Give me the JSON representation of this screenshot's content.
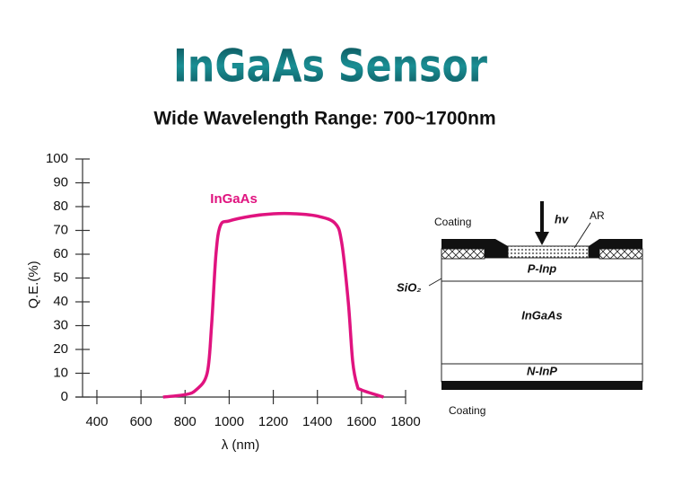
{
  "header": {
    "title": "InGaAs Sensor",
    "subtitle": "Wide Wavelength Range: 700~1700nm"
  },
  "chart_data": {
    "type": "line",
    "x": [
      700,
      800,
      850,
      900,
      920,
      940,
      960,
      1000,
      1100,
      1200,
      1300,
      1400,
      1480,
      1510,
      1540,
      1560,
      1580,
      1600,
      1700
    ],
    "series": [
      {
        "name": "InGaAs",
        "color": "#e0137f",
        "values": [
          0,
          1,
          3,
          10,
          30,
          60,
          72,
          74,
          76,
          77,
          77,
          76,
          73,
          65,
          40,
          15,
          5,
          3,
          0
        ]
      }
    ],
    "xlabel": "λ (nm)",
    "ylabel": "Q.E.(%)",
    "xlim": [
      335,
      1800
    ],
    "ylim": [
      0,
      100
    ],
    "xticks": [
      400,
      600,
      800,
      1000,
      1200,
      1400,
      1600,
      1800
    ],
    "yticks": [
      0,
      10,
      20,
      30,
      40,
      50,
      60,
      70,
      80,
      90,
      100
    ],
    "grid": false
  },
  "diagram": {
    "coating_top": "Coating",
    "light": "hv",
    "ar": "AR",
    "oxide": "SiO₂",
    "p_layer": "P-Inp",
    "absorber": "InGaAs",
    "n_layer": "N-InP",
    "coating_bottom": "Coating"
  }
}
